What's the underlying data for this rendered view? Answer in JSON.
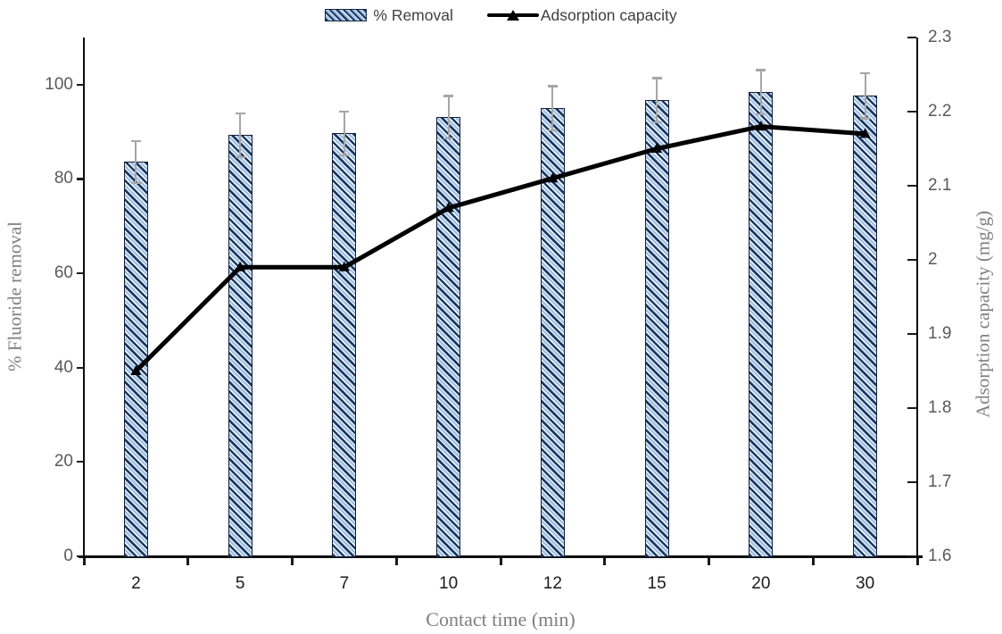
{
  "legend": {
    "removal_label": "% Removal",
    "capacity_label": "Adsorption capacity"
  },
  "axes": {
    "x_title": "Contact time (min)",
    "y_left_title": "% Fluoride removal",
    "y_right_title": "Adsorption capacity (mg/g)",
    "y_left_ticks": [
      "0",
      "20",
      "40",
      "60",
      "80",
      "100"
    ],
    "y_left_tick_values": [
      0,
      20,
      40,
      60,
      80,
      100
    ],
    "y_right_ticks": [
      "1.6",
      "1.7",
      "1.8",
      "1.9",
      "2",
      "2.1",
      "2.2",
      "2.3"
    ],
    "y_right_tick_values": [
      1.6,
      1.7,
      1.8,
      1.9,
      2.0,
      2.1,
      2.2,
      2.3
    ]
  },
  "chart_data": {
    "type": "bar+line",
    "categories": [
      "2",
      "5",
      "7",
      "10",
      "12",
      "15",
      "20",
      "30"
    ],
    "series": [
      {
        "name": "% Removal",
        "type": "bar",
        "axis": "left",
        "values": [
          83.6,
          89.3,
          89.7,
          93.1,
          95.0,
          96.7,
          98.4,
          97.7
        ],
        "error_plus_minus": [
          4.4,
          4.7,
          4.6,
          4.5,
          4.7,
          4.7,
          4.7,
          4.8
        ]
      },
      {
        "name": "Adsorption capacity",
        "type": "line",
        "axis": "right",
        "values": [
          1.85,
          1.99,
          1.99,
          2.07,
          2.11,
          2.15,
          2.18,
          2.17
        ]
      }
    ],
    "xlabel": "Contact time (min)",
    "ylabel_left": "% Fluoride removal",
    "ylabel_right": "Adsorption capacity (mg/g)",
    "ylim_left": [
      0,
      110
    ],
    "ylim_right": [
      1.6,
      2.3
    ],
    "grid": false,
    "legend_position": "top-center"
  },
  "colors": {
    "bar_hatch_dark": "#1f3864",
    "bar_hatch_light": "#9dc3e6",
    "bar_border": "#141f38",
    "line": "#000000",
    "error_bar": "#a6a6a6",
    "axis_line": "#0d0d0d",
    "y_tick_label": "#595959",
    "x_tick_label": "#1a1a1a",
    "axis_title": "#7f7f7f",
    "legend_text": "#404040"
  }
}
